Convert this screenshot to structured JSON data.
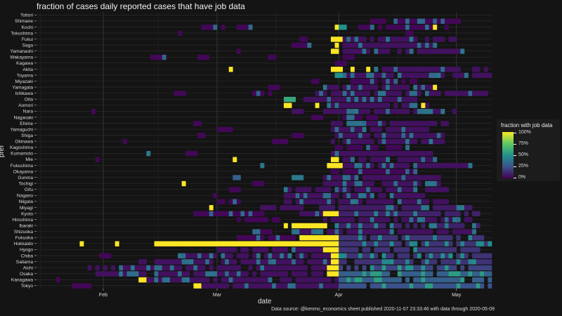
{
  "chart_data": {
    "type": "heatmap",
    "title": "fraction of cases daily reported cases that have job data",
    "xlabel": "date",
    "ylabel": "pref",
    "x_ticks": [
      "Feb",
      "Mar",
      "Apr",
      "May"
    ],
    "x_range": [
      "2020-01-15",
      "2020-05-10"
    ],
    "categories": [
      "Tottori",
      "Shimane",
      "Kochi",
      "Tokushima",
      "Fukui",
      "Saga",
      "Yamanashi",
      "Wakayama",
      "Kagawa",
      "Akita",
      "Toyama",
      "Miyazaki",
      "Yamagata",
      "Ishikawa",
      "Oita",
      "Aomori",
      "Nara",
      "Nagasaki",
      "Ehime",
      "Yamaguchi",
      "Shiga",
      "Okinawa",
      "Kagoshima",
      "Kumamoto",
      "Mie",
      "Fukushima",
      "Okayama",
      "Gunma",
      "Tochigi",
      "Gifu",
      "Nagano",
      "Niigata",
      "Miyagi",
      "Kyoto",
      "Hiroshima",
      "Ibaraki",
      "Shizuoka",
      "Fukuoka",
      "Hokkaido",
      "Hyogo",
      "Chiba",
      "Saitama",
      "Aichi",
      "Osaka",
      "Kanagawa",
      "Tokyo"
    ],
    "legend": {
      "title": "fraction with job data",
      "ticks": [
        "100%",
        "75%",
        "50%",
        "25%",
        "0%"
      ],
      "position": "right"
    },
    "grid": true,
    "values_note": "",
    "cells": [
      {
        "pref": "Tottori",
        "runs": []
      },
      {
        "pref": "Shimane",
        "runs": [
          [
            "2020-04-08",
            "2020-05-01",
            0.02
          ]
        ]
      },
      {
        "pref": "Kochi",
        "runs": [
          [
            "2020-02-26",
            "2020-03-03",
            0.02
          ],
          [
            "2020-03-06",
            "2020-03-10",
            0.02
          ],
          [
            "2020-03-31",
            "2020-03-31",
            1.0
          ],
          [
            "2020-04-01",
            "2020-04-02",
            0.5
          ],
          [
            "2020-04-06",
            "2020-04-28",
            0.02
          ],
          [
            "2020-04-25",
            "2020-04-25",
            1.0
          ]
        ]
      },
      {
        "pref": "Tokushima",
        "runs": [
          [
            "2020-02-20",
            "2020-02-20",
            0.02
          ],
          [
            "2020-04-18",
            "2020-04-19",
            0.02
          ]
        ]
      },
      {
        "pref": "Fukui",
        "runs": [
          [
            "2020-03-22",
            "2020-03-23",
            0.02
          ],
          [
            "2020-03-30",
            "2020-04-01",
            1.0
          ],
          [
            "2020-04-02",
            "2020-04-30",
            0.05
          ]
        ]
      },
      {
        "pref": "Saga",
        "runs": [
          [
            "2020-03-20",
            "2020-03-24",
            0.02
          ],
          [
            "2020-03-31",
            "2020-03-31",
            1.0
          ],
          [
            "2020-04-02",
            "2020-04-26",
            0.05
          ]
        ]
      },
      {
        "pref": "Yamanashi",
        "runs": [
          [
            "2020-03-06",
            "2020-03-06",
            0.02
          ],
          [
            "2020-03-30",
            "2020-03-31",
            1.0
          ],
          [
            "2020-04-02",
            "2020-05-02",
            0.05
          ]
        ]
      },
      {
        "pref": "Wakayama",
        "runs": [
          [
            "2020-02-13",
            "2020-02-17",
            0.02
          ],
          [
            "2020-02-25",
            "2020-02-27",
            0.02
          ],
          [
            "2020-03-14",
            "2020-03-15",
            0.02
          ],
          [
            "2020-04-02",
            "2020-04-04",
            0.02
          ]
        ]
      },
      {
        "pref": "Kagawa",
        "runs": [
          [
            "2020-03-31",
            "2020-04-02",
            0.02
          ]
        ]
      },
      {
        "pref": "Akita",
        "runs": [
          [
            "2020-03-04",
            "2020-03-04",
            1.0
          ],
          [
            "2020-03-30",
            "2020-04-01",
            1.0
          ],
          [
            "2020-04-04",
            "2020-04-04",
            1.0
          ],
          [
            "2020-04-08",
            "2020-04-08",
            1.0
          ],
          [
            "2020-04-10",
            "2020-05-08",
            0.05
          ]
        ]
      },
      {
        "pref": "Toyama",
        "runs": [
          [
            "2020-03-31",
            "2020-04-01",
            0.5
          ],
          [
            "2020-04-02",
            "2020-05-09",
            0.05
          ]
        ]
      },
      {
        "pref": "Miyazaki",
        "runs": [
          [
            "2020-03-25",
            "2020-03-26",
            0.02
          ],
          [
            "2020-04-04",
            "2020-04-20",
            0.02
          ]
        ]
      },
      {
        "pref": "Yamagata",
        "runs": [
          [
            "2020-03-14",
            "2020-03-16",
            0.02
          ],
          [
            "2020-03-28",
            "2020-04-24",
            0.05
          ],
          [
            "2020-04-25",
            "2020-04-25",
            1.0
          ]
        ]
      },
      {
        "pref": "Ishikawa",
        "runs": [
          [
            "2020-02-19",
            "2020-02-21",
            0.02
          ],
          [
            "2020-03-10",
            "2020-03-14",
            0.02
          ],
          [
            "2020-03-26",
            "2020-05-08",
            0.05
          ]
        ]
      },
      {
        "pref": "Oita",
        "runs": [
          [
            "2020-03-18",
            "2020-03-20",
            0.6
          ],
          [
            "2020-03-23",
            "2020-04-20",
            0.05
          ]
        ]
      },
      {
        "pref": "Aomori",
        "runs": [
          [
            "2020-03-18",
            "2020-03-19",
            1.0
          ],
          [
            "2020-03-26",
            "2020-03-26",
            1.0
          ],
          [
            "2020-03-29",
            "2020-04-24",
            0.05
          ],
          [
            "2020-04-22",
            "2020-04-22",
            1.0
          ]
        ]
      },
      {
        "pref": "Nara",
        "runs": [
          [
            "2020-01-29",
            "2020-01-29",
            0.02
          ],
          [
            "2020-03-20",
            "2020-03-22",
            0.05
          ],
          [
            "2020-03-28",
            "2020-04-30",
            0.05
          ]
        ]
      },
      {
        "pref": "Nagasaki",
        "runs": [
          [
            "2020-03-25",
            "2020-03-27",
            0.02
          ],
          [
            "2020-04-02",
            "2020-04-10",
            0.02
          ]
        ]
      },
      {
        "pref": "Ehime",
        "runs": [
          [
            "2020-02-24",
            "2020-02-25",
            0.02
          ],
          [
            "2020-03-30",
            "2020-04-28",
            0.05
          ]
        ]
      },
      {
        "pref": "Yamaguchi",
        "runs": [
          [
            "2020-03-01",
            "2020-03-04",
            0.02
          ],
          [
            "2020-03-30",
            "2020-04-24",
            0.05
          ]
        ]
      },
      {
        "pref": "Shiga",
        "runs": [
          [
            "2020-02-25",
            "2020-02-26",
            0.02
          ],
          [
            "2020-03-20",
            "2020-03-22",
            0.02
          ],
          [
            "2020-03-31",
            "2020-04-28",
            0.05
          ]
        ]
      },
      {
        "pref": "Okinawa",
        "runs": [
          [
            "2020-02-06",
            "2020-02-06",
            0.02
          ],
          [
            "2020-03-15",
            "2020-03-18",
            0.02
          ],
          [
            "2020-03-30",
            "2020-04-28",
            0.05
          ]
        ]
      },
      {
        "pref": "Kagoshima",
        "runs": [
          [
            "2020-03-31",
            "2020-04-18",
            0.02
          ]
        ]
      },
      {
        "pref": "Kumamoto",
        "runs": [
          [
            "2020-02-12",
            "2020-02-12",
            0.4
          ],
          [
            "2020-02-22",
            "2020-02-24",
            0.02
          ],
          [
            "2020-03-30",
            "2020-04-24",
            0.05
          ]
        ]
      },
      {
        "pref": "Mie",
        "runs": [
          [
            "2020-01-30",
            "2020-01-30",
            0.02
          ],
          [
            "2020-03-05",
            "2020-03-05",
            1.0
          ],
          [
            "2020-03-30",
            "2020-03-31",
            1.0
          ],
          [
            "2020-04-02",
            "2020-04-26",
            0.05
          ]
        ]
      },
      {
        "pref": "Fukushima",
        "runs": [
          [
            "2020-03-12",
            "2020-03-12",
            0.4
          ],
          [
            "2020-03-29",
            "2020-04-01",
            1.0
          ],
          [
            "2020-04-02",
            "2020-05-04",
            0.05
          ]
        ]
      },
      {
        "pref": "Okayama",
        "runs": [
          [
            "2020-03-29",
            "2020-04-20",
            0.02
          ]
        ]
      },
      {
        "pref": "Gunma",
        "runs": [
          [
            "2020-03-05",
            "2020-03-06",
            0.3
          ],
          [
            "2020-03-20",
            "2020-03-22",
            0.4
          ],
          [
            "2020-03-28",
            "2020-04-26",
            0.05
          ]
        ]
      },
      {
        "pref": "Tochigi",
        "runs": [
          [
            "2020-02-21",
            "2020-02-21",
            1.0
          ],
          [
            "2020-03-10",
            "2020-03-12",
            0.02
          ],
          [
            "2020-03-28",
            "2020-04-26",
            0.05
          ]
        ]
      },
      {
        "pref": "Gifu",
        "runs": [
          [
            "2020-03-04",
            "2020-03-06",
            0.02
          ],
          [
            "2020-03-18",
            "2020-04-28",
            0.05
          ]
        ]
      },
      {
        "pref": "Nagano",
        "runs": [
          [
            "2020-02-29",
            "2020-02-29",
            0.02
          ],
          [
            "2020-03-18",
            "2020-04-22",
            0.05
          ]
        ]
      },
      {
        "pref": "Niigata",
        "runs": [
          [
            "2020-03-01",
            "2020-03-06",
            0.02
          ],
          [
            "2020-03-18",
            "2020-04-28",
            0.05
          ]
        ]
      },
      {
        "pref": "Miyagi",
        "runs": [
          [
            "2020-02-28",
            "2020-02-28",
            1.0
          ],
          [
            "2020-03-12",
            "2020-03-22",
            0.05
          ],
          [
            "2020-03-27",
            "2020-05-04",
            0.08
          ]
        ]
      },
      {
        "pref": "Kyoto",
        "runs": [
          [
            "2020-02-24",
            "2020-03-12",
            0.02
          ],
          [
            "2020-03-22",
            "2020-03-28",
            0.05
          ],
          [
            "2020-03-28",
            "2020-03-31",
            1.0
          ],
          [
            "2020-04-01",
            "2020-05-06",
            0.1
          ]
        ]
      },
      {
        "pref": "Hiroshima",
        "runs": [
          [
            "2020-03-06",
            "2020-03-16",
            0.02
          ],
          [
            "2020-03-28",
            "2020-05-04",
            0.05
          ]
        ]
      },
      {
        "pref": "Ibaraki",
        "runs": [
          [
            "2020-03-18",
            "2020-03-18",
            1.0
          ],
          [
            "2020-03-20",
            "2020-03-28",
            1.0
          ],
          [
            "2020-03-31",
            "2020-05-06",
            0.1
          ]
        ]
      },
      {
        "pref": "Shizuoka",
        "runs": [
          [
            "2020-03-10",
            "2020-03-14",
            0.02
          ],
          [
            "2020-03-20",
            "2020-05-06",
            0.05
          ]
        ]
      },
      {
        "pref": "Fukuoka",
        "runs": [
          [
            "2020-03-06",
            "2020-03-22",
            0.02
          ],
          [
            "2020-03-22",
            "2020-03-31",
            1.0
          ],
          [
            "2020-04-01",
            "2020-05-08",
            0.15
          ]
        ]
      },
      {
        "pref": "Hokkaido",
        "runs": [
          [
            "2020-01-26",
            "2020-01-26",
            1.0
          ],
          [
            "2020-02-04",
            "2020-02-04",
            1.0
          ],
          [
            "2020-02-14",
            "2020-03-31",
            1.0
          ],
          [
            "2020-04-01",
            "2020-05-09",
            0.15
          ]
        ]
      },
      {
        "pref": "Hyogo",
        "runs": [
          [
            "2020-03-01",
            "2020-03-28",
            0.05
          ],
          [
            "2020-03-28",
            "2020-03-31",
            1.0
          ],
          [
            "2020-04-01",
            "2020-05-06",
            0.15
          ]
        ]
      },
      {
        "pref": "Chiba",
        "runs": [
          [
            "2020-01-31",
            "2020-02-02",
            0.02
          ],
          [
            "2020-02-20",
            "2020-03-30",
            0.05
          ],
          [
            "2020-03-30",
            "2020-03-31",
            1.0
          ],
          [
            "2020-04-01",
            "2020-05-09",
            0.15
          ]
        ]
      },
      {
        "pref": "Saitama",
        "runs": [
          [
            "2020-02-10",
            "2020-03-30",
            0.05
          ],
          [
            "2020-03-30",
            "2020-03-31",
            1.0
          ],
          [
            "2020-04-01",
            "2020-05-09",
            0.15
          ]
        ]
      },
      {
        "pref": "Aichi",
        "runs": [
          [
            "2020-01-28",
            "2020-03-29",
            0.05
          ],
          [
            "2020-03-29",
            "2020-03-31",
            1.0
          ],
          [
            "2020-04-01",
            "2020-05-09",
            0.2
          ]
        ]
      },
      {
        "pref": "Osaka",
        "runs": [
          [
            "2020-01-30",
            "2020-03-29",
            0.05
          ],
          [
            "2020-03-29",
            "2020-03-31",
            1.0
          ],
          [
            "2020-04-01",
            "2020-05-09",
            0.3
          ]
        ]
      },
      {
        "pref": "Kanagawa",
        "runs": [
          [
            "2020-01-20",
            "2020-01-20",
            0.02
          ],
          [
            "2020-02-10",
            "2020-02-12",
            1.0
          ],
          [
            "2020-02-12",
            "2020-03-31",
            0.05
          ],
          [
            "2020-04-01",
            "2020-05-09",
            0.3
          ]
        ]
      },
      {
        "pref": "Tokyo",
        "runs": [
          [
            "2020-01-24",
            "2020-01-28",
            0.02
          ],
          [
            "2020-02-24",
            "2020-02-25",
            1.0
          ],
          [
            "2020-02-26",
            "2020-03-31",
            0.05
          ],
          [
            "2020-04-01",
            "2020-05-09",
            0.25
          ]
        ]
      }
    ]
  },
  "caption": "Data source: @kenmo_economics sheet published 2020-11-07 23:33:46 with data through 2020-05-09"
}
